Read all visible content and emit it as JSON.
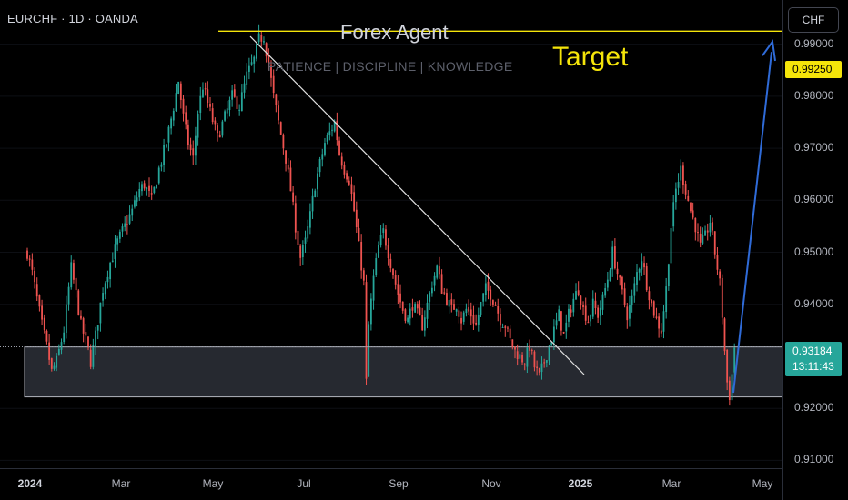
{
  "header": {
    "symbol": "EURCHF · 1D · OANDA",
    "brand": "Forex Agent",
    "tagline": "PATIENCE  |  DISCIPLINE  |  KNOWLEDGE",
    "target_label": "Target",
    "currency": "CHF"
  },
  "chart_data": {
    "type": "candlestick",
    "instrument": "EURCHF",
    "timeframe": "1D",
    "x_ticks": [
      {
        "label": "2024",
        "bold": true
      },
      {
        "label": "Mar",
        "bold": false
      },
      {
        "label": "May",
        "bold": false
      },
      {
        "label": "Jul",
        "bold": false
      },
      {
        "label": "Sep",
        "bold": false
      },
      {
        "label": "Nov",
        "bold": false
      },
      {
        "label": "2025",
        "bold": true
      },
      {
        "label": "Mar",
        "bold": false
      },
      {
        "label": "May",
        "bold": false
      }
    ],
    "y_ticks": [
      "0.99000",
      "0.98000",
      "0.97000",
      "0.96000",
      "0.95000",
      "0.94000",
      "0.92000",
      "0.91000"
    ],
    "ylim": [
      0.9085,
      0.9985
    ],
    "price_path": [
      [
        0,
        0.95
      ],
      [
        2,
        0.946
      ],
      [
        4,
        0.941
      ],
      [
        6,
        0.936
      ],
      [
        8,
        0.932
      ],
      [
        10,
        0.927
      ],
      [
        12,
        0.929
      ],
      [
        15,
        0.935
      ],
      [
        18,
        0.947
      ],
      [
        20,
        0.942
      ],
      [
        22,
        0.936
      ],
      [
        24,
        0.933
      ],
      [
        26,
        0.929
      ],
      [
        28,
        0.934
      ],
      [
        31,
        0.943
      ],
      [
        34,
        0.948
      ],
      [
        37,
        0.952
      ],
      [
        40,
        0.955
      ],
      [
        43,
        0.958
      ],
      [
        46,
        0.962
      ],
      [
        48,
        0.963
      ],
      [
        51,
        0.96
      ],
      [
        54,
        0.966
      ],
      [
        57,
        0.971
      ],
      [
        60,
        0.978
      ],
      [
        62,
        0.983
      ],
      [
        64,
        0.976
      ],
      [
        66,
        0.971
      ],
      [
        68,
        0.968
      ],
      [
        70,
        0.977
      ],
      [
        72,
        0.982
      ],
      [
        75,
        0.977
      ],
      [
        78,
        0.972
      ],
      [
        81,
        0.976
      ],
      [
        84,
        0.98
      ],
      [
        87,
        0.978
      ],
      [
        90,
        0.984
      ],
      [
        93,
        0.987
      ],
      [
        95,
        0.991
      ],
      [
        97,
        0.9915
      ],
      [
        99,
        0.986
      ],
      [
        101,
        0.98
      ],
      [
        103,
        0.975
      ],
      [
        106,
        0.968
      ],
      [
        108,
        0.962
      ],
      [
        110,
        0.955
      ],
      [
        112,
        0.949
      ],
      [
        114,
        0.952
      ],
      [
        116,
        0.957
      ],
      [
        118,
        0.963
      ],
      [
        120,
        0.967
      ],
      [
        122,
        0.971
      ],
      [
        124,
        0.973
      ],
      [
        126,
        0.975
      ],
      [
        128,
        0.969
      ],
      [
        130,
        0.966
      ],
      [
        132,
        0.964
      ],
      [
        134,
        0.958
      ],
      [
        136,
        0.951
      ],
      [
        138,
        0.944
      ],
      [
        139,
        0.925
      ],
      [
        140,
        0.936
      ],
      [
        142,
        0.945
      ],
      [
        144,
        0.951
      ],
      [
        146,
        0.954
      ],
      [
        148,
        0.95
      ],
      [
        150,
        0.946
      ],
      [
        152,
        0.942
      ],
      [
        154,
        0.939
      ],
      [
        156,
        0.937
      ],
      [
        158,
        0.94
      ],
      [
        160,
        0.938
      ],
      [
        162,
        0.936
      ],
      [
        164,
        0.94
      ],
      [
        166,
        0.944
      ],
      [
        168,
        0.947
      ],
      [
        170,
        0.943
      ],
      [
        172,
        0.941
      ],
      [
        174,
        0.939
      ],
      [
        176,
        0.94
      ],
      [
        178,
        0.937
      ],
      [
        180,
        0.939
      ],
      [
        182,
        0.938
      ],
      [
        184,
        0.936
      ],
      [
        186,
        0.94
      ],
      [
        188,
        0.943
      ],
      [
        190,
        0.942
      ],
      [
        192,
        0.94
      ],
      [
        194,
        0.937
      ],
      [
        196,
        0.936
      ],
      [
        198,
        0.933
      ],
      [
        200,
        0.931
      ],
      [
        202,
        0.93
      ],
      [
        204,
        0.929
      ],
      [
        206,
        0.932
      ],
      [
        208,
        0.928
      ],
      [
        210,
        0.926
      ],
      [
        212,
        0.929
      ],
      [
        214,
        0.932
      ],
      [
        216,
        0.935
      ],
      [
        218,
        0.938
      ],
      [
        220,
        0.934
      ],
      [
        222,
        0.938
      ],
      [
        224,
        0.941
      ],
      [
        226,
        0.943
      ],
      [
        228,
        0.939
      ],
      [
        230,
        0.937
      ],
      [
        232,
        0.94
      ],
      [
        234,
        0.938
      ],
      [
        236,
        0.941
      ],
      [
        238,
        0.945
      ],
      [
        240,
        0.95
      ],
      [
        242,
        0.946
      ],
      [
        244,
        0.942
      ],
      [
        246,
        0.938
      ],
      [
        248,
        0.941
      ],
      [
        250,
        0.946
      ],
      [
        252,
        0.949
      ],
      [
        254,
        0.944
      ],
      [
        256,
        0.94
      ],
      [
        258,
        0.937
      ],
      [
        260,
        0.935
      ],
      [
        262,
        0.943
      ],
      [
        264,
        0.955
      ],
      [
        266,
        0.962
      ],
      [
        268,
        0.966
      ],
      [
        270,
        0.962
      ],
      [
        272,
        0.958
      ],
      [
        274,
        0.955
      ],
      [
        276,
        0.951
      ],
      [
        278,
        0.953
      ],
      [
        280,
        0.956
      ],
      [
        282,
        0.95
      ],
      [
        284,
        0.944
      ],
      [
        285,
        0.938
      ],
      [
        286,
        0.931
      ],
      [
        287,
        0.925
      ],
      [
        288,
        0.9225
      ],
      [
        289,
        0.9265
      ],
      [
        290,
        0.93184
      ]
    ],
    "support_zone": {
      "top": 0.9318,
      "bottom": 0.9222
    },
    "target_level": 0.9925,
    "current_price": 0.93184,
    "target_price_label": "0.99250",
    "current_price_label": "0.93184",
    "countdown_label": "13:11:43"
  }
}
